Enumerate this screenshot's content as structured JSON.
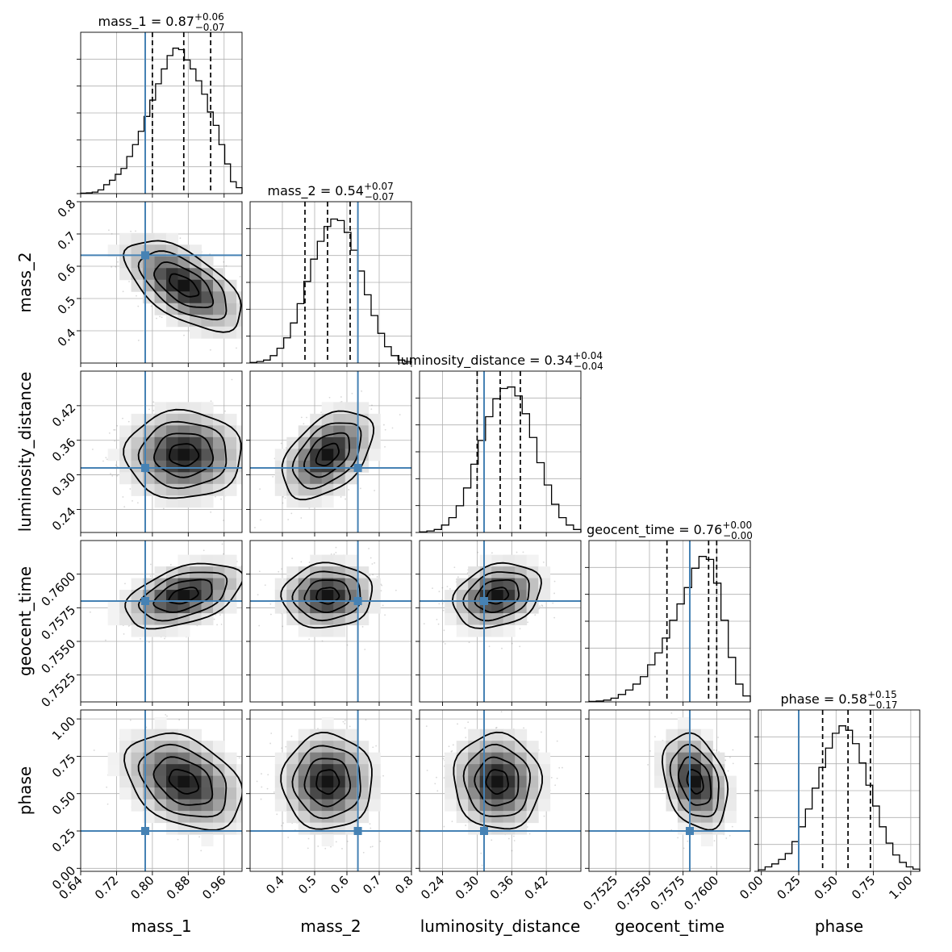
{
  "chart_data": {
    "type": "corner",
    "grid": true,
    "truth_color": "#4682b4",
    "parameters": [
      {
        "name": "mass_1",
        "xlabel": "mass_1",
        "ylabel": "",
        "range": [
          0.64,
          1.0
        ],
        "ticks": [
          0.64,
          0.72,
          0.8,
          0.88,
          0.96
        ],
        "tick_labels": [
          "0.64",
          "0.72",
          "0.80",
          "0.88",
          "0.96"
        ],
        "title": "mass_1 = 0.87",
        "median": 0.87,
        "plus": "+0.06",
        "minus": "−0.07",
        "q_lo": 0.8,
        "q_hi": 0.93,
        "truth": 0.784,
        "mean": 0.87,
        "sigma": 0.065,
        "hist": [
          0.003,
          0.005,
          0.01,
          0.025,
          0.06,
          0.09,
          0.13,
          0.17,
          0.25,
          0.33,
          0.42,
          0.52,
          0.63,
          0.74,
          0.84,
          0.93,
          0.98,
          0.97,
          0.9,
          0.84,
          0.76,
          0.67,
          0.55,
          0.46,
          0.33,
          0.2,
          0.08,
          0.04
        ]
      },
      {
        "name": "mass_2",
        "xlabel": "mass_2",
        "ylabel": "mass_2",
        "range": [
          0.3,
          0.8
        ],
        "ticks": [
          0.4,
          0.5,
          0.6,
          0.7,
          0.8
        ],
        "tick_labels": [
          "0.4",
          "0.5",
          "0.6",
          "0.7",
          "0.8"
        ],
        "title": "mass_2 = 0.54",
        "median": 0.54,
        "plus": "+0.07",
        "minus": "−0.07",
        "q_lo": 0.47,
        "q_hi": 0.61,
        "truth": 0.634,
        "mean": 0.54,
        "sigma": 0.07,
        "hist": [
          0.004,
          0.01,
          0.02,
          0.05,
          0.1,
          0.17,
          0.27,
          0.4,
          0.55,
          0.7,
          0.82,
          0.92,
          0.97,
          0.96,
          0.88,
          0.76,
          0.62,
          0.46,
          0.32,
          0.2,
          0.11,
          0.05,
          0.02,
          0.01
        ]
      },
      {
        "name": "luminosity_distance",
        "xlabel": "luminosity_distance",
        "ylabel": "luminosity_distance",
        "range": [
          0.2,
          0.48
        ],
        "ticks": [
          0.24,
          0.3,
          0.36,
          0.42
        ],
        "tick_labels": [
          "0.24",
          "0.30",
          "0.36",
          "0.42"
        ],
        "title": "luminosity_distance = 0.34",
        "median": 0.34,
        "plus": "+0.04",
        "minus": "−0.04",
        "q_lo": 0.3,
        "q_hi": 0.375,
        "truth": 0.312,
        "mean": 0.335,
        "sigma": 0.038,
        "hist": [
          0.004,
          0.01,
          0.02,
          0.05,
          0.1,
          0.18,
          0.3,
          0.46,
          0.62,
          0.78,
          0.9,
          0.97,
          0.98,
          0.92,
          0.8,
          0.64,
          0.47,
          0.32,
          0.19,
          0.1,
          0.05,
          0.02
        ]
      },
      {
        "name": "geocent_time",
        "xlabel": "geocent_time",
        "ylabel": "geocent_time",
        "range": [
          0.7505,
          0.7625
        ],
        "ticks": [
          0.7525,
          0.755,
          0.7575,
          0.76
        ],
        "tick_labels": [
          "0.7525",
          "0.7550",
          "0.7575",
          "0.7600"
        ],
        "title": "geocent_time = 0.76",
        "median": 0.76,
        "plus": "+0.00",
        "minus": "−0.00",
        "q_lo": 0.7563,
        "q_hi": 0.7594,
        "truth": 0.758,
        "mean": 0.7584,
        "sigma": 0.0012,
        "hist": [
          0.003,
          0.006,
          0.012,
          0.025,
          0.05,
          0.08,
          0.12,
          0.17,
          0.25,
          0.33,
          0.43,
          0.55,
          0.66,
          0.77,
          0.9,
          0.98,
          0.96,
          0.8,
          0.55,
          0.3,
          0.12,
          0.04
        ]
      },
      {
        "name": "phase",
        "xlabel": "phase",
        "ylabel": "phase",
        "range": [
          -0.02,
          1.06
        ],
        "ticks": [
          0.0,
          0.25,
          0.5,
          0.75,
          1.0
        ],
        "tick_labels": [
          "0.00",
          "0.25",
          "0.50",
          "0.75",
          "1.00"
        ],
        "title": "phase = 0.58",
        "median": 0.58,
        "plus": "+0.15",
        "minus": "−0.17",
        "q_lo": 0.41,
        "q_hi": 0.73,
        "truth": 0.25,
        "mean": 0.58,
        "sigma": 0.16,
        "hist": [
          0.01,
          0.03,
          0.05,
          0.08,
          0.12,
          0.2,
          0.3,
          0.42,
          0.56,
          0.7,
          0.83,
          0.93,
          0.98,
          0.95,
          0.86,
          0.73,
          0.58,
          0.44,
          0.3,
          0.19,
          0.11,
          0.06,
          0.03,
          0.015
        ]
      }
    ],
    "correlations": {
      "0-1": -0.6,
      "0-2": 0.0,
      "0-3": 0.45,
      "0-4": -0.35,
      "1-2": 0.45,
      "1-3": 0.05,
      "1-4": 0.0,
      "2-3": 0.25,
      "2-4": -0.05,
      "3-4": -0.3
    }
  }
}
